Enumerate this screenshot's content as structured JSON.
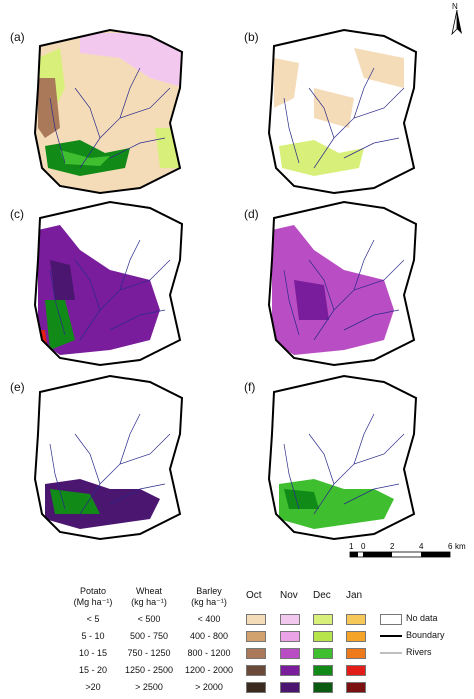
{
  "north_label": "N",
  "panels": [
    {
      "label": "(a)",
      "content": "all crops mixed sowing months"
    },
    {
      "label": "(b)",
      "content": "barley sowing months"
    },
    {
      "label": "(c)",
      "content": "wheat yield"
    },
    {
      "label": "(d)",
      "content": "wheat sowing months"
    },
    {
      "label": "(e)",
      "content": "potato yield"
    },
    {
      "label": "(f)",
      "content": "potato sowing months"
    }
  ],
  "scale": {
    "ticks": [
      "1",
      "0",
      "2",
      "4",
      "6"
    ],
    "unit": "km"
  },
  "legend": {
    "headers": {
      "potato": "Potato",
      "potato_unit": "(Mg ha⁻¹)",
      "wheat": "Wheat",
      "wheat_unit": "(kg ha⁻¹)",
      "barley": "Barley",
      "barley_unit": "(kg ha⁻¹)"
    },
    "rows": [
      {
        "potato": "< 5",
        "wheat": "< 500",
        "barley": "< 400"
      },
      {
        "potato": "5 - 10",
        "wheat": "500 - 750",
        "barley": "400 - 800"
      },
      {
        "potato": "10 - 15",
        "wheat": "750 - 1250",
        "barley": "800 - 1200"
      },
      {
        "potato": "15 - 20",
        "wheat": "1250 - 2500",
        "barley": "1200 - 2000"
      },
      {
        "potato": ">20",
        "wheat": "> 2500",
        "barley": "> 2000"
      }
    ],
    "months": [
      "Oct",
      "Nov",
      "Dec",
      "Jan"
    ],
    "month_colors": [
      [
        "#f5dcb8",
        "#f3c8ee",
        "#d8f07a",
        "#f6c85a"
      ],
      [
        "#d2a26e",
        "#e9a3e6",
        "#b7e34b",
        "#f4a426"
      ],
      [
        "#a9795a",
        "#b94dc3",
        "#3fbf2f",
        "#ee7a1c"
      ],
      [
        "#6b4a3a",
        "#7a1d9c",
        "#128a17",
        "#e21d18"
      ],
      [
        "#3a2a20",
        "#4a1670",
        "#0a5a12",
        "#7a1010"
      ]
    ],
    "keys": {
      "no_data": "No data",
      "boundary": "Boundary",
      "rivers": "Rivers"
    }
  }
}
